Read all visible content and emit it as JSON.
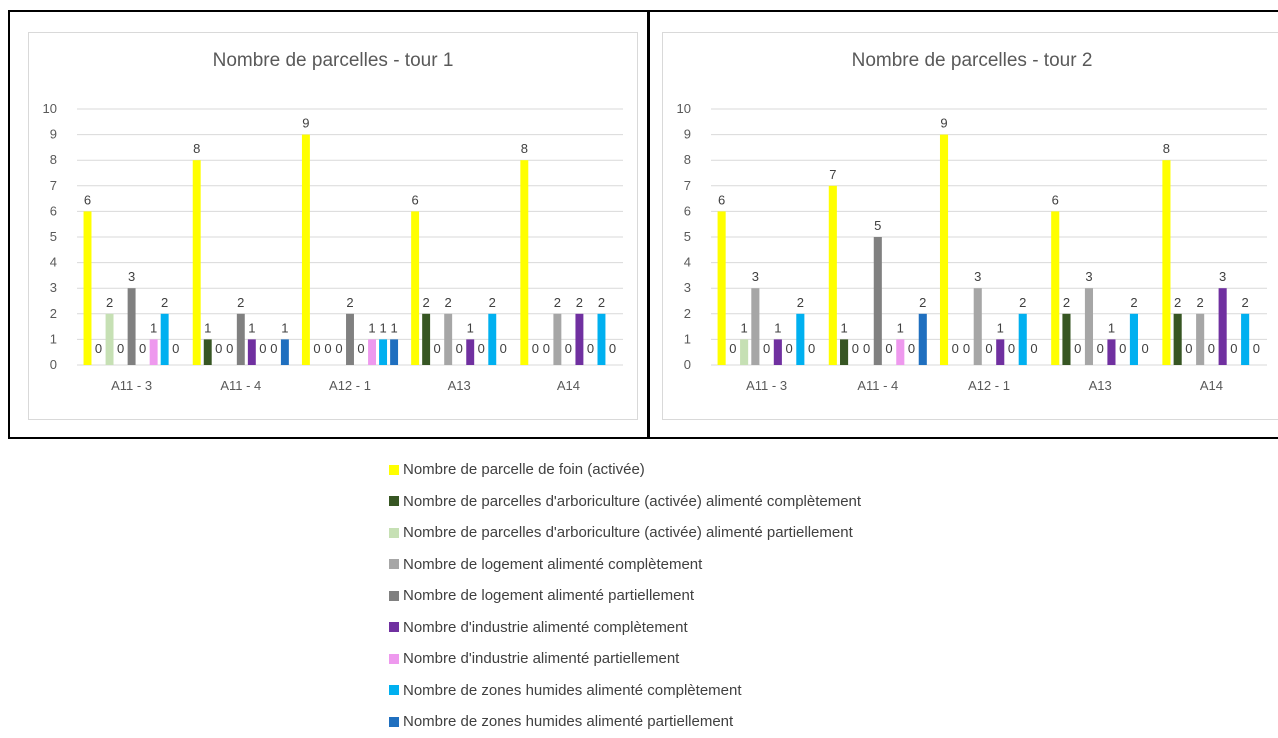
{
  "chart_data": [
    {
      "type": "bar",
      "title": "Nombre de parcelles - tour 1",
      "categories": [
        "A11 - 3",
        "A11 - 4",
        "A12 - 1",
        "A13",
        "A14"
      ],
      "ylim": [
        0,
        10
      ],
      "yticks": [
        0,
        1,
        2,
        3,
        4,
        5,
        6,
        7,
        8,
        9,
        10
      ],
      "grid": true,
      "legend_position": "bottom",
      "series": [
        {
          "name": "Nombre de parcelle de foin (activée)",
          "color": "#ffff00",
          "values": [
            6,
            8,
            9,
            6,
            8
          ]
        },
        {
          "name": "Nombre de parcelles d'arboriculture (activée) alimenté complètement",
          "color": "#375623",
          "values": [
            0,
            1,
            0,
            2,
            0
          ]
        },
        {
          "name": "Nombre de parcelles d'arboriculture (activée) alimenté partiellement",
          "color": "#c6e0b4",
          "values": [
            2,
            0,
            0,
            0,
            0
          ]
        },
        {
          "name": "Nombre de logement alimenté complètement",
          "color": "#a6a6a6",
          "values": [
            0,
            0,
            0,
            2,
            2
          ]
        },
        {
          "name": "Nombre de logement alimenté partiellement",
          "color": "#808080",
          "values": [
            3,
            2,
            2,
            0,
            0
          ]
        },
        {
          "name": "Nombre d'industrie alimenté complètement",
          "color": "#7030a0",
          "values": [
            0,
            1,
            0,
            1,
            2
          ]
        },
        {
          "name": "Nombre d'industrie alimenté partiellement",
          "color": "#ee99ee",
          "values": [
            1,
            0,
            1,
            0,
            0
          ]
        },
        {
          "name": "Nombre de zones humides alimenté complètement",
          "color": "#00b0f0",
          "values": [
            2,
            0,
            1,
            2,
            2
          ]
        },
        {
          "name": "Nombre de zones humides alimenté partiellement",
          "color": "#1f6fbf",
          "values": [
            0,
            1,
            1,
            0,
            0
          ]
        }
      ]
    },
    {
      "type": "bar",
      "title": "Nombre de parcelles - tour 2",
      "categories": [
        "A11 - 3",
        "A11 - 4",
        "A12 - 1",
        "A13",
        "A14"
      ],
      "ylim": [
        0,
        10
      ],
      "yticks": [
        0,
        1,
        2,
        3,
        4,
        5,
        6,
        7,
        8,
        9,
        10
      ],
      "grid": true,
      "legend_position": "bottom",
      "series": [
        {
          "name": "Nombre de parcelle de foin (activée)",
          "color": "#ffff00",
          "values": [
            6,
            7,
            9,
            6,
            8
          ]
        },
        {
          "name": "Nombre de parcelles d'arboriculture (activée) alimenté complètement",
          "color": "#375623",
          "values": [
            0,
            1,
            0,
            2,
            2
          ]
        },
        {
          "name": "Nombre de parcelles d'arboriculture (activée) alimenté partiellement",
          "color": "#c6e0b4",
          "values": [
            1,
            0,
            0,
            0,
            0
          ]
        },
        {
          "name": "Nombre de logement alimenté complètement",
          "color": "#a6a6a6",
          "values": [
            3,
            0,
            3,
            3,
            2
          ]
        },
        {
          "name": "Nombre de logement alimenté partiellement",
          "color": "#808080",
          "values": [
            0,
            5,
            0,
            0,
            0
          ]
        },
        {
          "name": "Nombre d'industrie alimenté complètement",
          "color": "#7030a0",
          "values": [
            1,
            0,
            1,
            1,
            3
          ]
        },
        {
          "name": "Nombre d'industrie alimenté partiellement",
          "color": "#ee99ee",
          "values": [
            0,
            1,
            0,
            0,
            0
          ]
        },
        {
          "name": "Nombre de zones humides alimenté complètement",
          "color": "#00b0f0",
          "values": [
            2,
            0,
            2,
            2,
            2
          ]
        },
        {
          "name": "Nombre de zones humides alimenté partiellement",
          "color": "#1f6fbf",
          "values": [
            0,
            2,
            0,
            0,
            0
          ]
        }
      ]
    }
  ]
}
